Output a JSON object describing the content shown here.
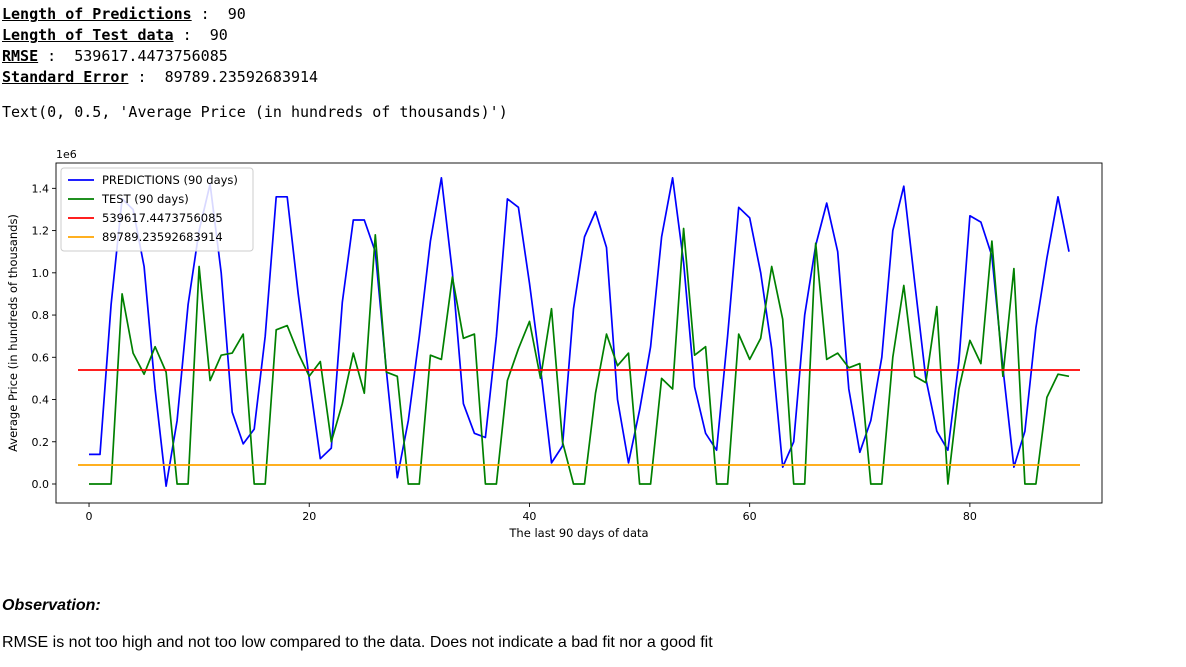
{
  "output": {
    "stats": [
      {
        "label": "Length of Predictions",
        "sep": " :  ",
        "value": "90"
      },
      {
        "label": "Length of Test data",
        "sep": " :  ",
        "value": "90"
      },
      {
        "label": "RMSE",
        "sep": " :  ",
        "value": "539617.4473756085"
      },
      {
        "label": "Standard Error",
        "sep": " :  ",
        "value": "89789.23592683914"
      }
    ],
    "text_repr": "Text(0, 0.5, 'Average Price (in hundreds of thousands)')"
  },
  "chart_data": {
    "type": "line",
    "title": "",
    "xlabel": "The last 90 days of data",
    "ylabel": "Average Price (in hundreds of thousands)",
    "y_offset_label": "1e6",
    "xlim": [
      -3,
      92
    ],
    "ylim": [
      -0.09,
      1.52
    ],
    "xticks": [
      0,
      20,
      40,
      60,
      80
    ],
    "yticks": [
      "0.0",
      "0.2",
      "0.4",
      "0.6",
      "0.8",
      "1.0",
      "1.2",
      "1.4"
    ],
    "legend_position": "top-left",
    "grid": false,
    "series": [
      {
        "name": "PREDICTIONS (90 days)",
        "color": "#0000ff",
        "x_start": 0,
        "values": [
          0.14,
          0.14,
          0.85,
          1.35,
          1.3,
          1.03,
          0.45,
          -0.01,
          0.3,
          0.85,
          1.2,
          1.42,
          1.0,
          0.34,
          0.19,
          0.26,
          0.7,
          1.36,
          1.36,
          0.9,
          0.5,
          0.12,
          0.17,
          0.86,
          1.25,
          1.25,
          1.1,
          0.54,
          0.03,
          0.3,
          0.7,
          1.15,
          1.45,
          1.0,
          0.38,
          0.24,
          0.22,
          0.7,
          1.35,
          1.31,
          0.95,
          0.55,
          0.1,
          0.18,
          0.83,
          1.17,
          1.29,
          1.12,
          0.4,
          0.1,
          0.35,
          0.65,
          1.17,
          1.45,
          1.05,
          0.46,
          0.24,
          0.16,
          0.7,
          1.31,
          1.26,
          1.0,
          0.64,
          0.08,
          0.2,
          0.8,
          1.13,
          1.33,
          1.1,
          0.45,
          0.15,
          0.3,
          0.6,
          1.2,
          1.41,
          0.95,
          0.5,
          0.25,
          0.16,
          0.58,
          1.27,
          1.24,
          1.08,
          0.55,
          0.08,
          0.25,
          0.74,
          1.07,
          1.36,
          1.1
        ]
      },
      {
        "name": "TEST (90 days)",
        "color": "#008000",
        "x_start": 0,
        "values": [
          0.0,
          0.0,
          0.0,
          0.9,
          0.62,
          0.52,
          0.65,
          0.53,
          0.0,
          0.0,
          1.03,
          0.49,
          0.61,
          0.62,
          0.71,
          0.0,
          0.0,
          0.73,
          0.75,
          0.62,
          0.51,
          0.58,
          0.2,
          0.38,
          0.62,
          0.43,
          1.18,
          0.53,
          0.51,
          0.0,
          0.0,
          0.61,
          0.59,
          0.98,
          0.69,
          0.71,
          0.0,
          0.0,
          0.49,
          0.64,
          0.77,
          0.5,
          0.83,
          0.2,
          0.0,
          0.0,
          0.43,
          0.71,
          0.56,
          0.62,
          0.0,
          0.0,
          0.5,
          0.45,
          1.21,
          0.61,
          0.65,
          0.0,
          0.0,
          0.71,
          0.59,
          0.69,
          1.03,
          0.78,
          0.0,
          0.0,
          1.14,
          0.59,
          0.62,
          0.55,
          0.57,
          0.0,
          0.0,
          0.6,
          0.94,
          0.51,
          0.48,
          0.84,
          0.0,
          0.45,
          0.68,
          0.57,
          1.15,
          0.51,
          1.02,
          0.0,
          0.0,
          0.41,
          0.52,
          0.51
        ]
      },
      {
        "name": "539617.4473756085",
        "color": "#ff0000",
        "x": [
          -1,
          90
        ],
        "values": [
          0.5396,
          0.5396
        ]
      },
      {
        "name": "89789.23592683914",
        "color": "#ffa500",
        "x": [
          -1,
          90
        ],
        "values": [
          0.0898,
          0.0898
        ]
      }
    ]
  },
  "observation": {
    "heading": "Observation:",
    "text": "RMSE is not too high and not too low compared to the data. Does not indicate a bad fit nor a good fit"
  }
}
